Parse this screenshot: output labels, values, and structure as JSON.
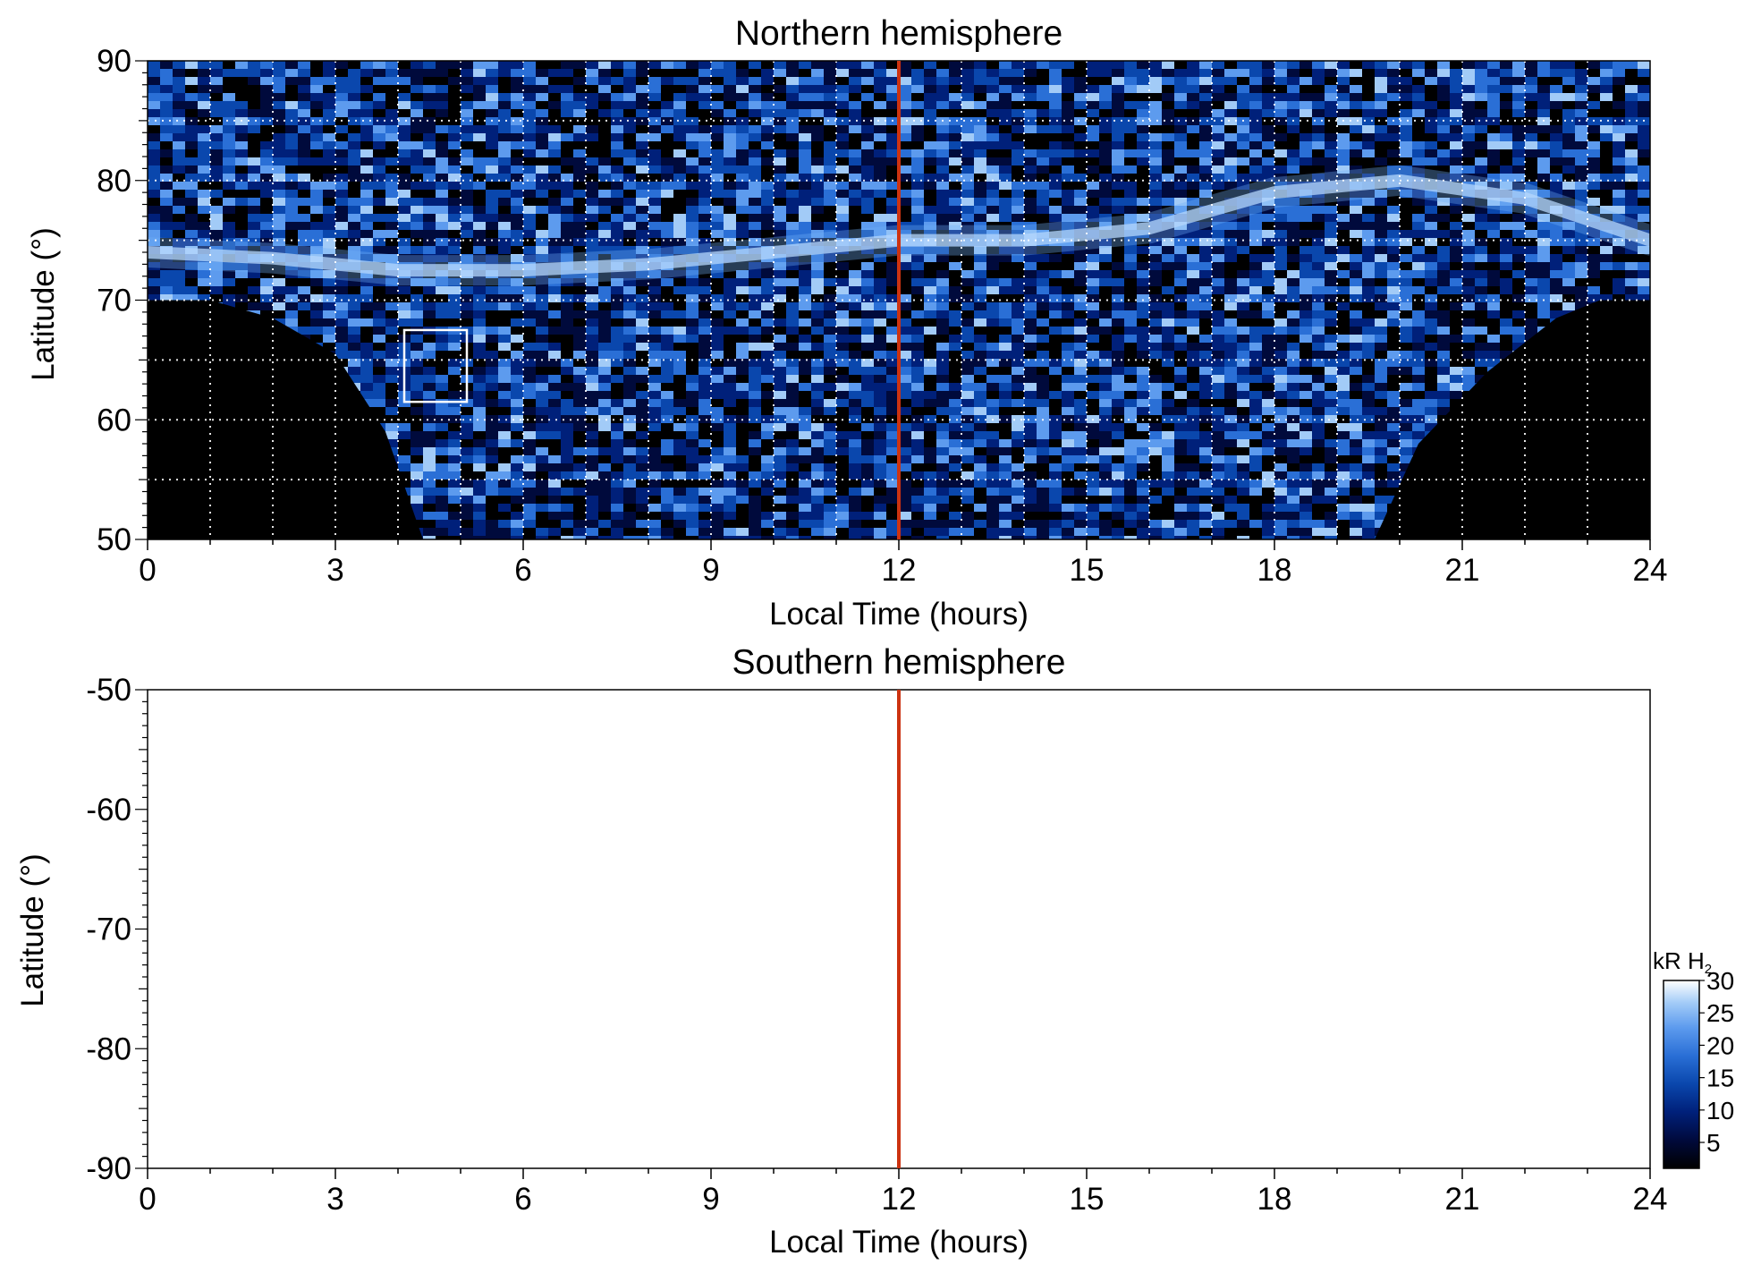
{
  "chart_data": [
    {
      "type": "heatmap",
      "title": "Northern hemisphere",
      "xlabel": "Local Time (hours)",
      "ylabel": "Latitude (°)",
      "xlim": [
        0,
        24
      ],
      "ylim": [
        50,
        90
      ],
      "x_ticks": [
        "0",
        "3",
        "6",
        "9",
        "12",
        "15",
        "18",
        "21",
        "24"
      ],
      "y_ticks": [
        "50",
        "60",
        "70",
        "80",
        "90"
      ],
      "grid": true,
      "vertical_marker_x": 12,
      "marker_color": "#cc3311",
      "highlight_box": {
        "x": [
          4.1,
          5.1
        ],
        "y": [
          61.5,
          67.5
        ]
      },
      "auroral_oval_latitude": [
        [
          0,
          74
        ],
        [
          2,
          73.5
        ],
        [
          4,
          72.5
        ],
        [
          6,
          72.5
        ],
        [
          8,
          73
        ],
        [
          10,
          74
        ],
        [
          12,
          75
        ],
        [
          14,
          75
        ],
        [
          16,
          76
        ],
        [
          18,
          79
        ],
        [
          20,
          80
        ],
        [
          22,
          78.5
        ],
        [
          24,
          75
        ]
      ],
      "no_data_boundary": [
        [
          0,
          70
        ],
        [
          1,
          70
        ],
        [
          2,
          68.5
        ],
        [
          3,
          65.5
        ],
        [
          3.8,
          59
        ],
        [
          4.4,
          50
        ],
        [
          19.6,
          50
        ],
        [
          20.3,
          58
        ],
        [
          21.4,
          64
        ],
        [
          22.5,
          68.5
        ],
        [
          23.2,
          70
        ],
        [
          24,
          70
        ]
      ]
    },
    {
      "type": "heatmap",
      "title": "Southern hemisphere",
      "xlabel": "Local Time (hours)",
      "ylabel": "Latitude (°)",
      "xlim": [
        0,
        24
      ],
      "ylim": [
        -90,
        -50
      ],
      "x_ticks": [
        "0",
        "3",
        "6",
        "9",
        "12",
        "15",
        "18",
        "21",
        "24"
      ],
      "y_ticks": [
        "-50",
        "-60",
        "-70",
        "-80",
        "-90"
      ],
      "grid": false,
      "vertical_marker_x": 12,
      "marker_color": "#cc3311"
    }
  ],
  "colorbar": {
    "unit_label": "kR H",
    "unit_subscript": "2",
    "range": [
      1,
      30
    ],
    "ticks": [
      "30",
      "25",
      "20",
      "15",
      "10",
      "5"
    ],
    "colors": [
      "#000000",
      "#000a3c",
      "#00207a",
      "#0a47ad",
      "#2a6fd6",
      "#5d9bee",
      "#a2cbf7",
      "#ffffff"
    ]
  }
}
